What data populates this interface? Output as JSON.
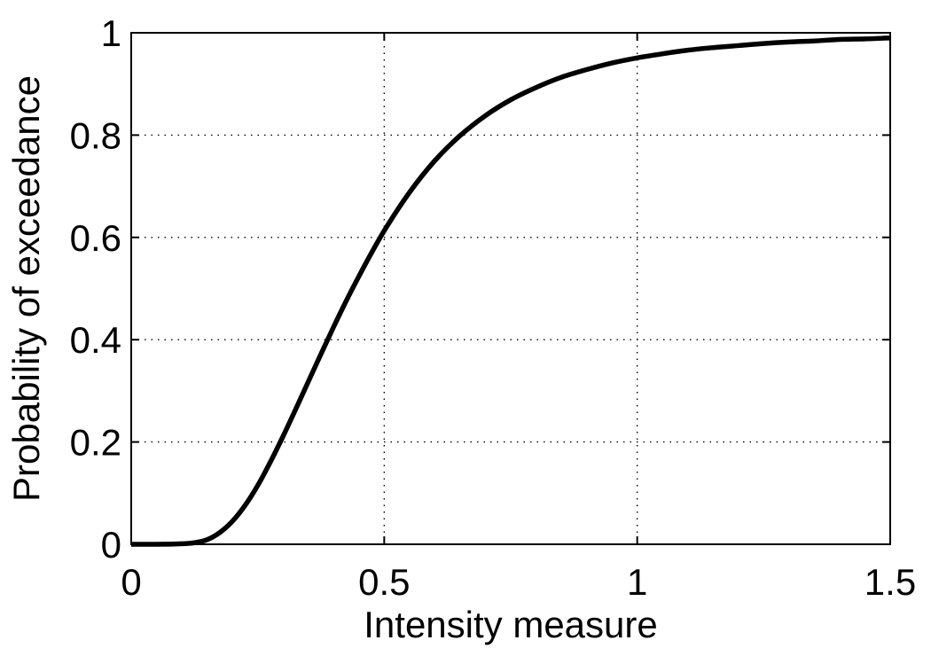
{
  "chart_data": {
    "type": "line",
    "title": "",
    "xlabel": "Intensity measure",
    "ylabel": "Probability of exceedance",
    "xlim": [
      0,
      1.5
    ],
    "ylim": [
      0,
      1
    ],
    "xticks": [
      0,
      0.5,
      1,
      1.5
    ],
    "xtick_labels": [
      "0",
      "0.5",
      "1",
      "1.5"
    ],
    "yticks": [
      0,
      0.2,
      0.4,
      0.6,
      0.8,
      1
    ],
    "ytick_labels": [
      "0",
      "0.2",
      "0.4",
      "0.6",
      "0.8",
      "1"
    ],
    "grid": true,
    "grid_style": "dotted",
    "legend": "none",
    "line_color": "#000000",
    "series": [
      {
        "x": [
          0,
          0.05,
          0.1,
          0.125,
          0.15,
          0.175,
          0.2,
          0.225,
          0.25,
          0.275,
          0.3,
          0.325,
          0.35,
          0.375,
          0.4,
          0.425,
          0.45,
          0.475,
          0.5,
          0.55,
          0.6,
          0.65,
          0.7,
          0.75,
          0.8,
          0.85,
          0.9,
          0.95,
          1,
          1.05,
          1.1,
          1.15,
          1.2,
          1.25,
          1.3,
          1.35,
          1.4,
          1.45,
          1.5
        ],
        "y": [
          0,
          0,
          0.001,
          0.003,
          0.009,
          0.023,
          0.045,
          0.076,
          0.115,
          0.161,
          0.211,
          0.264,
          0.318,
          0.372,
          0.425,
          0.476,
          0.524,
          0.57,
          0.613,
          0.688,
          0.75,
          0.799,
          0.838,
          0.869,
          0.893,
          0.913,
          0.928,
          0.941,
          0.951,
          0.959,
          0.966,
          0.971,
          0.975,
          0.979,
          0.982,
          0.984,
          0.987,
          0.988,
          0.99
        ]
      }
    ]
  }
}
